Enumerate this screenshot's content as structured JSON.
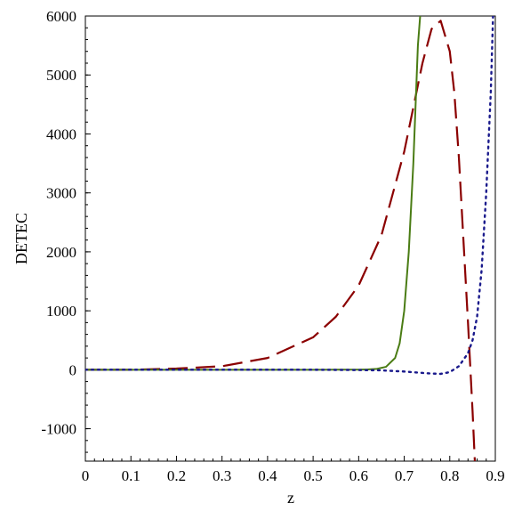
{
  "chart_data": {
    "type": "line",
    "xlabel": "z",
    "ylabel": "DETEC",
    "xlim": [
      0,
      0.9
    ],
    "ylim": [
      -1550,
      6000
    ],
    "x_ticks": [
      0,
      0.1,
      0.2,
      0.3,
      0.4,
      0.5,
      0.6,
      0.7,
      0.8,
      0.9
    ],
    "x_tick_labels": [
      "0",
      "0.1",
      "0.2",
      "0.3",
      "0.4",
      "0.5",
      "0.6",
      "0.7",
      "0.8",
      "0.9"
    ],
    "y_ticks": [
      -1000,
      0,
      1000,
      2000,
      3000,
      4000,
      5000,
      6000
    ],
    "y_tick_labels": [
      "-1000",
      "0",
      "1000",
      "2000",
      "3000",
      "4000",
      "5000",
      "6000"
    ],
    "grid": false,
    "legend": "none",
    "series": [
      {
        "style": "dash",
        "color": "#8b0000",
        "x": [
          0,
          0.1,
          0.2,
          0.3,
          0.4,
          0.5,
          0.55,
          0.6,
          0.65,
          0.7,
          0.72,
          0.74,
          0.76,
          0.78,
          0.8,
          0.81,
          0.82,
          0.83,
          0.84,
          0.85,
          0.855
        ],
        "y": [
          0,
          0,
          20,
          60,
          200,
          550,
          900,
          1430,
          2280,
          3700,
          4450,
          5200,
          5780,
          5920,
          5400,
          4700,
          3600,
          2200,
          800,
          -700,
          -1550
        ]
      },
      {
        "style": "solid",
        "color": "#4a7c14",
        "x": [
          0,
          0.1,
          0.2,
          0.3,
          0.4,
          0.5,
          0.6,
          0.62,
          0.64,
          0.66,
          0.68,
          0.69,
          0.7,
          0.71,
          0.72,
          0.725,
          0.73,
          0.735
        ],
        "y": [
          0,
          0,
          0,
          0,
          0,
          0,
          2,
          5,
          15,
          50,
          200,
          450,
          1000,
          2000,
          3500,
          4500,
          5500,
          6000
        ]
      },
      {
        "style": "dot",
        "color": "#1a1a8c",
        "x": [
          0,
          0.1,
          0.2,
          0.3,
          0.4,
          0.5,
          0.6,
          0.65,
          0.7,
          0.75,
          0.78,
          0.8,
          0.82,
          0.84,
          0.85,
          0.86,
          0.87,
          0.88,
          0.89,
          0.895
        ],
        "y": [
          0,
          0,
          0,
          0,
          0,
          0,
          -5,
          -10,
          -30,
          -60,
          -70,
          -40,
          60,
          280,
          500,
          900,
          1700,
          3000,
          4700,
          6000
        ]
      }
    ]
  }
}
